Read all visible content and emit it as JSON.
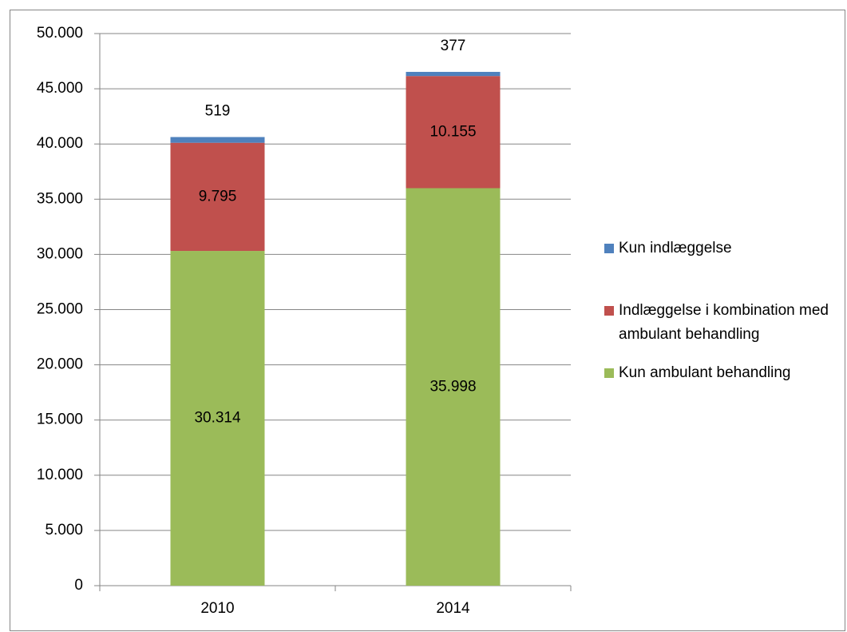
{
  "chart_data": {
    "type": "stacked_bar",
    "categories": [
      "2010",
      "2014"
    ],
    "series": [
      {
        "name": "Kun ambulant behandling",
        "color": "#9bbb59",
        "values": [
          30314,
          35998
        ],
        "value_labels": [
          "30.314",
          "35.998"
        ]
      },
      {
        "name": "Indlæggelse i kombination med ambulant behandling",
        "color": "#c0504d",
        "values": [
          9795,
          10155
        ],
        "value_labels": [
          "9.795",
          "10.155"
        ]
      },
      {
        "name": "Kun indlæggelse",
        "color": "#4f81bd",
        "values": [
          519,
          377
        ],
        "value_labels": [
          "519",
          "377"
        ]
      }
    ],
    "ylim": [
      0,
      50000
    ],
    "yticks": [
      0,
      {
        "value": 5000,
        "label": "5.000"
      },
      {
        "value": 10000,
        "label": "10.000"
      },
      {
        "value": 15000,
        "label": "15.000"
      },
      {
        "value": 20000,
        "label": "20.000"
      },
      {
        "value": 25000,
        "label": "25.000"
      },
      {
        "value": 30000,
        "label": "30.000"
      },
      {
        "value": 35000,
        "label": "35.000"
      },
      {
        "value": 40000,
        "label": "40.000"
      },
      {
        "value": 45000,
        "label": "45.000"
      },
      {
        "value": 50000,
        "label": "50.000"
      }
    ],
    "grid": true,
    "legend": "right"
  }
}
